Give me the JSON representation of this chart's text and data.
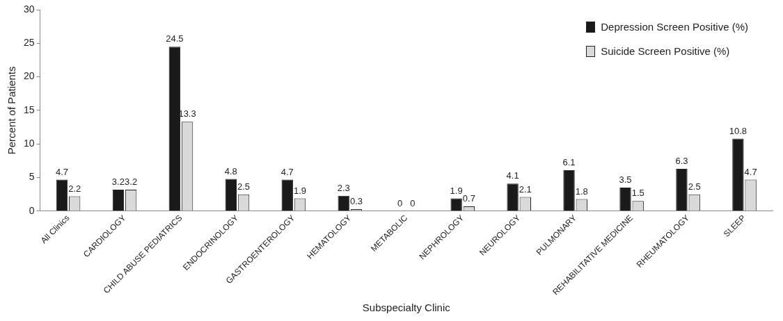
{
  "chart_data": {
    "type": "bar",
    "xlabel": "Subspecialty Clinic",
    "ylabel": "Percent of Patients",
    "categories": [
      "All Clinics",
      "CARDIOLOGY",
      "CHILD ABUSE PEDIATRICS",
      "ENDOCRINOLOGY",
      "GASTROENTEROLOGY",
      "HEMATOLOGY",
      "METABOLIC",
      "NEPHROLOGY",
      "NEUROLOGY",
      "PULMONARY",
      "REHABILITATIVE MEDICINE",
      "RHEUMATOLOGY",
      "SLEEP"
    ],
    "series": [
      {
        "name": "Depression Screen Positive (%)",
        "color": "#1a1a1a",
        "values": [
          4.7,
          3.2,
          24.5,
          4.8,
          4.7,
          2.3,
          0,
          1.9,
          4.1,
          6.1,
          3.5,
          6.3,
          10.8
        ]
      },
      {
        "name": "Suicide Screen Positive (%)",
        "color": "#d9d9d9",
        "values": [
          2.2,
          3.2,
          13.3,
          2.5,
          1.9,
          0.3,
          0,
          0.7,
          2.1,
          1.8,
          1.5,
          2.5,
          4.7
        ]
      }
    ],
    "ylim": [
      0,
      30
    ],
    "yticks": [
      0,
      5,
      10,
      15,
      20,
      25,
      30
    ],
    "grid": false,
    "legend": "top right",
    "data_labels": true
  }
}
